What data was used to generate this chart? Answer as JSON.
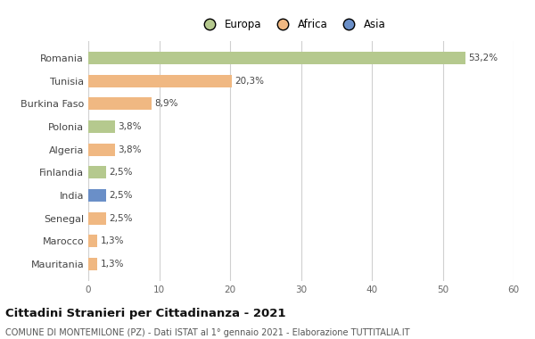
{
  "categories": [
    "Romania",
    "Tunisia",
    "Burkina Faso",
    "Polonia",
    "Algeria",
    "Finlandia",
    "India",
    "Senegal",
    "Marocco",
    "Mauritania"
  ],
  "values": [
    53.2,
    20.3,
    8.9,
    3.8,
    3.8,
    2.5,
    2.5,
    2.5,
    1.3,
    1.3
  ],
  "labels": [
    "53,2%",
    "20,3%",
    "8,9%",
    "3,8%",
    "3,8%",
    "2,5%",
    "2,5%",
    "2,5%",
    "1,3%",
    "1,3%"
  ],
  "colors": [
    "#b5c98e",
    "#f0b882",
    "#f0b882",
    "#b5c98e",
    "#f0b882",
    "#b5c98e",
    "#6a8fc8",
    "#f0b882",
    "#f0b882",
    "#f0b882"
  ],
  "legend_labels": [
    "Europa",
    "Africa",
    "Asia"
  ],
  "legend_colors": [
    "#b5c98e",
    "#f0b882",
    "#6a8fc8"
  ],
  "xlim": [
    0,
    60
  ],
  "xticks": [
    0,
    10,
    20,
    30,
    40,
    50,
    60
  ],
  "title": "Cittadini Stranieri per Cittadinanza - 2021",
  "subtitle": "COMUNE DI MONTEMILONE (PZ) - Dati ISTAT al 1° gennaio 2021 - Elaborazione TUTTITALIA.IT",
  "bg_color": "#ffffff",
  "grid_color": "#d0d0d0",
  "bar_height": 0.55
}
